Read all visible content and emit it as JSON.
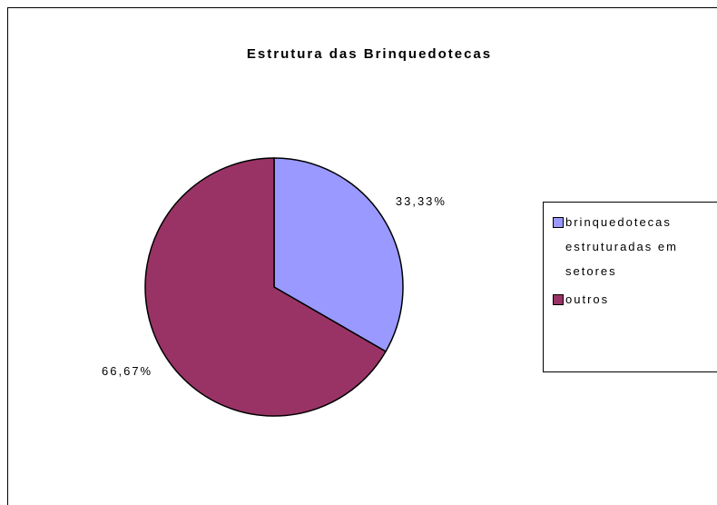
{
  "chart_data": {
    "type": "pie",
    "title": "Estrutura das Brinquedotecas",
    "categories": [
      "brinquedotecas estruturadas em setores",
      "outros"
    ],
    "values": [
      33.33,
      66.67
    ],
    "value_labels": [
      "33,33%",
      "66,67%"
    ],
    "colors": [
      "#9999ff",
      "#993366"
    ],
    "legend": "right"
  }
}
